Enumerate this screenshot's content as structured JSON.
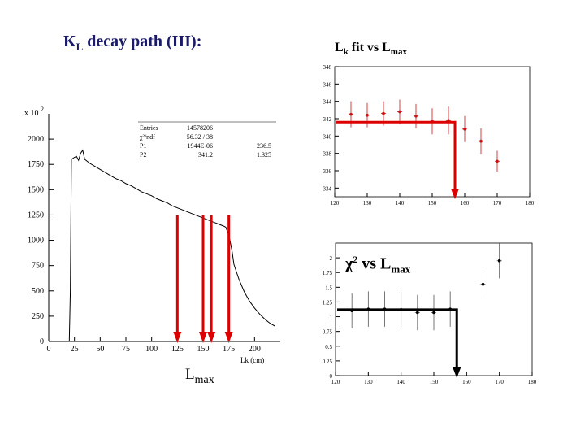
{
  "titles": {
    "left": {
      "main": "K",
      "sub": "L",
      "rest": " decay path (III):"
    },
    "right": {
      "main": "L",
      "sub": "k",
      "mid": " fit vs L",
      "sub2": "max"
    },
    "chi": {
      "main": "χ",
      "sup": "2",
      "mid": " vs L",
      "sub": "max"
    },
    "lmax": {
      "main": "L",
      "sub": "max"
    }
  },
  "chart_data": [
    {
      "id": "decay-histogram",
      "type": "line",
      "xlabel": "Lk (cm)",
      "y_multiplier": "x 10",
      "y_multiplier_exp": "2",
      "xlim": [
        0,
        225
      ],
      "ylim": [
        0,
        2250
      ],
      "xticks": [
        0,
        25,
        50,
        75,
        100,
        125,
        150,
        175,
        200
      ],
      "yticks": [
        0,
        250,
        500,
        750,
        1000,
        1250,
        1500,
        1750,
        2000
      ],
      "stats": [
        {
          "label": "Entries",
          "value": "14578206",
          "extra": ""
        },
        {
          "label": "χ²/ndf",
          "value": "56.32  /  38",
          "extra": ""
        },
        {
          "label": "P1",
          "value": "1944E-06",
          "extra": "236.5"
        },
        {
          "label": "P2",
          "value": "341.2",
          "extra": "1.325"
        }
      ],
      "series": [
        {
          "x": [
            20,
            21,
            22,
            25,
            27,
            29,
            31,
            33,
            35,
            40,
            45,
            50,
            55,
            60,
            65,
            70,
            75,
            80,
            85,
            90,
            95,
            100,
            105,
            110,
            115,
            120,
            125,
            130,
            135,
            140,
            145,
            150,
            155,
            160,
            165,
            170,
            172,
            175,
            178,
            180,
            185,
            190,
            195,
            200,
            205,
            210,
            215,
            220
          ],
          "y": [
            0,
            500,
            1800,
            1820,
            1830,
            1790,
            1860,
            1890,
            1800,
            1760,
            1730,
            1700,
            1670,
            1640,
            1610,
            1590,
            1560,
            1540,
            1510,
            1480,
            1460,
            1440,
            1410,
            1390,
            1370,
            1340,
            1320,
            1300,
            1280,
            1260,
            1240,
            1220,
            1200,
            1180,
            1160,
            1140,
            1130,
            1050,
            900,
            760,
            610,
            490,
            400,
            330,
            270,
            220,
            180,
            150
          ]
        }
      ],
      "markers": [
        125,
        150,
        158,
        175
      ]
    },
    {
      "id": "lk-fit",
      "type": "scatter",
      "xlim": [
        120,
        180
      ],
      "ylim": [
        333,
        348
      ],
      "xticks": [
        120,
        130,
        140,
        150,
        160,
        170,
        180
      ],
      "yticks": [
        334,
        336,
        338,
        340,
        342,
        344,
        346,
        348
      ],
      "points": [
        {
          "x": 125,
          "y": 342.5,
          "err": 1.5
        },
        {
          "x": 130,
          "y": 342.4,
          "err": 1.4
        },
        {
          "x": 135,
          "y": 342.6,
          "err": 1.4
        },
        {
          "x": 140,
          "y": 342.8,
          "err": 1.4
        },
        {
          "x": 145,
          "y": 342.3,
          "err": 1.4
        },
        {
          "x": 150,
          "y": 341.7,
          "err": 1.5
        },
        {
          "x": 155,
          "y": 341.8,
          "err": 1.6
        },
        {
          "x": 160,
          "y": 340.8,
          "err": 1.5
        },
        {
          "x": 165,
          "y": 339.4,
          "err": 1.5
        },
        {
          "x": 170,
          "y": 337.1,
          "err": 1.2
        }
      ],
      "fit_level": 341.6,
      "fit_until": 157
    },
    {
      "id": "chi2-vs-lmax",
      "type": "scatter",
      "xlim": [
        120,
        180
      ],
      "ylim": [
        0,
        2.25
      ],
      "xticks": [
        120,
        130,
        140,
        150,
        160,
        170,
        180
      ],
      "yticks": [
        0,
        0.25,
        0.5,
        0.75,
        1,
        1.25,
        1.5,
        1.75,
        2
      ],
      "points": [
        {
          "x": 125,
          "y": 1.1,
          "err": 0.3
        },
        {
          "x": 130,
          "y": 1.13,
          "err": 0.3
        },
        {
          "x": 135,
          "y": 1.13,
          "err": 0.3
        },
        {
          "x": 140,
          "y": 1.12,
          "err": 0.3
        },
        {
          "x": 145,
          "y": 1.07,
          "err": 0.3
        },
        {
          "x": 150,
          "y": 1.07,
          "err": 0.3
        },
        {
          "x": 155,
          "y": 1.13,
          "err": 0.3
        },
        {
          "x": 165,
          "y": 1.55,
          "err": 0.25
        },
        {
          "x": 170,
          "y": 1.95,
          "err": 0.3
        }
      ],
      "fit_level": 1.12,
      "fit_until": 157
    }
  ],
  "colors": {
    "accent": "#dd0000",
    "points": "#cc1111",
    "title": "#1a1a66"
  }
}
